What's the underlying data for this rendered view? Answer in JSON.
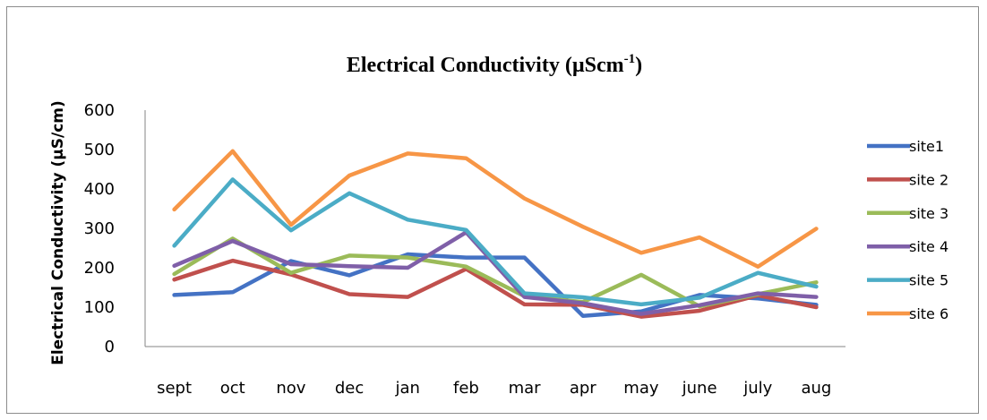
{
  "chart_data": {
    "type": "line",
    "title": "Electrical Conductivity (µScm",
    "title_superscript": "-1",
    "title_suffix": ")",
    "xlabel": "",
    "ylabel": "Electrical Conductivity (µS/cm)",
    "ylim": [
      0,
      600
    ],
    "yticks": [
      "0",
      "100",
      "200",
      "300",
      "400",
      "500",
      "600"
    ],
    "categories": [
      "sept",
      "oct",
      "nov",
      "dec",
      "jan",
      "feb",
      "mar",
      "apr",
      "may",
      "june",
      "july",
      "aug"
    ],
    "grid": false,
    "legend_position": "right",
    "series": [
      {
        "name": "site1",
        "color": "#4472c4",
        "values": [
          131,
          138,
          217,
          181,
          234,
          226,
          226,
          78,
          89,
          131,
          122,
          106
        ]
      },
      {
        "name": "site 2",
        "color": "#c0504d",
        "values": [
          170,
          218,
          183,
          133,
          126,
          197,
          107,
          106,
          76,
          91,
          130,
          100
        ]
      },
      {
        "name": "site 3",
        "color": "#9bbb59",
        "values": [
          184,
          274,
          187,
          231,
          226,
          203,
          128,
          113,
          182,
          102,
          133,
          163
        ]
      },
      {
        "name": "site 4",
        "color": "#7f5fa8",
        "values": [
          205,
          268,
          209,
          204,
          200,
          290,
          126,
          110,
          83,
          105,
          135,
          126
        ]
      },
      {
        "name": "site 5",
        "color": "#4bacc6",
        "values": [
          256,
          424,
          295,
          389,
          322,
          296,
          135,
          125,
          107,
          124,
          187,
          152
        ]
      },
      {
        "name": "site 6",
        "color": "#f79646",
        "values": [
          348,
          496,
          309,
          434,
          490,
          478,
          376,
          304,
          238,
          277,
          203,
          299
        ]
      }
    ]
  }
}
